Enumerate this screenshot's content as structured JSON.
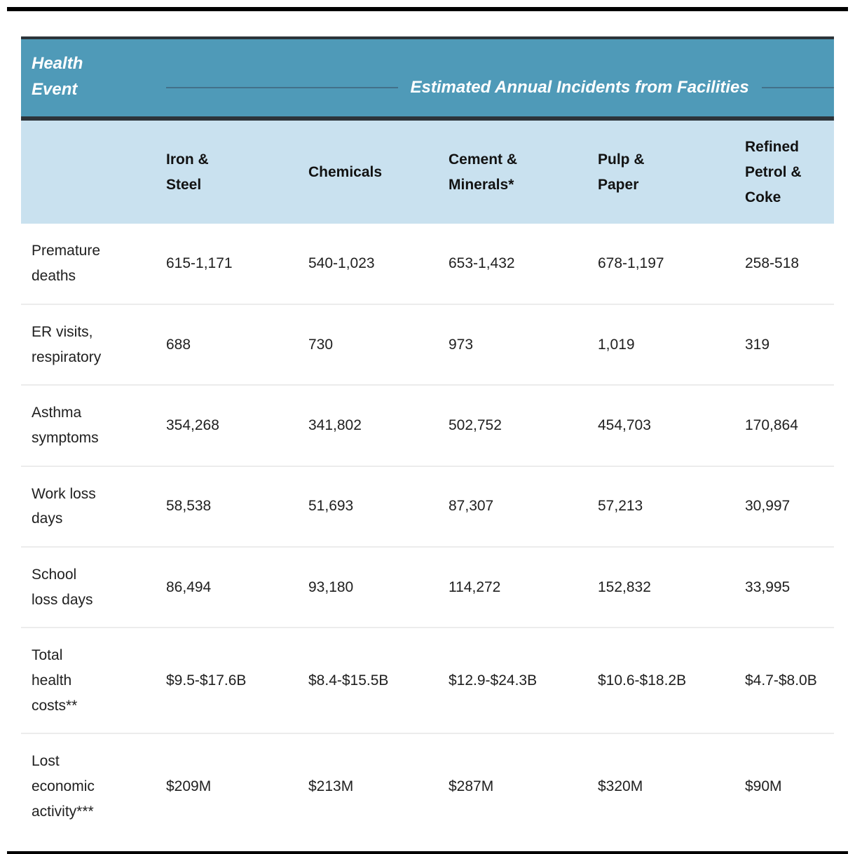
{
  "chart_data": {
    "type": "table",
    "title": "Estimated Annual Incidents from Facilities",
    "row_header": "Health\nEvent",
    "columns": [
      "Iron &\nSteel",
      "Chemicals",
      "Cement &\nMinerals*",
      "Pulp &\nPaper",
      "Refined\nPetrol &\nCoke"
    ],
    "rows": [
      {
        "label": "Premature\ndeaths",
        "values": [
          "615-1,171",
          "540-1,023",
          "653-1,432",
          "678-1,197",
          "258-518"
        ]
      },
      {
        "label": "ER visits,\nrespiratory",
        "values": [
          "688",
          "730",
          "973",
          "1,019",
          "319"
        ]
      },
      {
        "label": "Asthma\nsymptoms",
        "values": [
          "354,268",
          "341,802",
          "502,752",
          "454,703",
          "170,864"
        ]
      },
      {
        "label": "Work loss\ndays",
        "values": [
          "58,538",
          "51,693",
          "87,307",
          "57,213",
          "30,997"
        ]
      },
      {
        "label": "School\nloss days",
        "values": [
          "86,494",
          "93,180",
          "114,272",
          "152,832",
          "33,995"
        ]
      },
      {
        "label": "Total\nhealth\ncosts**",
        "values": [
          "$9.5-$17.6B",
          "$8.4-$15.5B",
          "$12.9-$24.3B",
          "$10.6-$18.2B",
          "$4.7-$8.0B"
        ]
      },
      {
        "label": "Lost\neconomic\nactivity***",
        "values": [
          "$209M",
          "$213M",
          "$287M",
          "$320M",
          "$90M"
        ]
      }
    ],
    "layout": {
      "legend": "none",
      "grid": "horizontal-row-dividers"
    }
  },
  "colors": {
    "teal": "#4f9ab8",
    "light_blue": "#c9e1ef",
    "dark_border": "#2d343a",
    "band_rule": "#42718a",
    "row_divider": "#ececec",
    "black_rule": "#000000",
    "text_dark": "#1f1f1f"
  }
}
